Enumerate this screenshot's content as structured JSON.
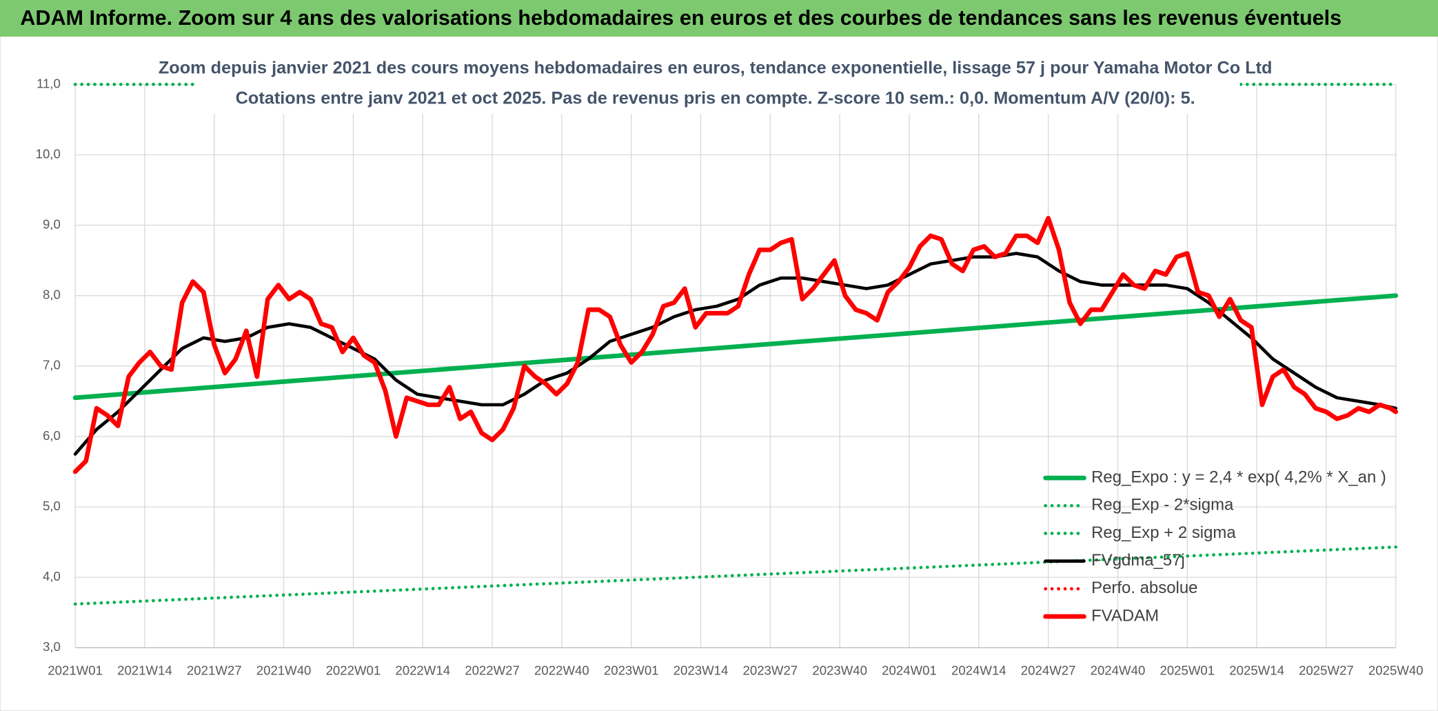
{
  "header": {
    "title": "ADAM Informe. Zoom sur 4 ans des valorisations hebdomadaires en euros et des courbes de tendances sans les revenus éventuels"
  },
  "chart_data": {
    "type": "line",
    "title": "Zoom depuis janvier 2021 des cours moyens hebdomadaires en euros, tendance exponentielle, lissage 57 j pour Yamaha Motor Co Ltd",
    "subtitle": "Cotations entre janv 2021 et oct 2025. Pas de revenus pris en compte. Z-score 10 sem.: 0,0. Momentum A/V (20/0): 5.",
    "xlim": [
      0,
      247
    ],
    "xticks": [
      {
        "value": 0,
        "label": "2021W01"
      },
      {
        "value": 13,
        "label": "2021W14"
      },
      {
        "value": 26,
        "label": "2021W27"
      },
      {
        "value": 39,
        "label": "2021W40"
      },
      {
        "value": 52,
        "label": "2022W01"
      },
      {
        "value": 65,
        "label": "2022W14"
      },
      {
        "value": 78,
        "label": "2022W27"
      },
      {
        "value": 91,
        "label": "2022W40"
      },
      {
        "value": 104,
        "label": "2023W01"
      },
      {
        "value": 117,
        "label": "2023W14"
      },
      {
        "value": 130,
        "label": "2023W27"
      },
      {
        "value": 143,
        "label": "2023W40"
      },
      {
        "value": 156,
        "label": "2024W01"
      },
      {
        "value": 169,
        "label": "2024W14"
      },
      {
        "value": 182,
        "label": "2024W27"
      },
      {
        "value": 195,
        "label": "2024W40"
      },
      {
        "value": 208,
        "label": "2025W01"
      },
      {
        "value": 221,
        "label": "2025W14"
      },
      {
        "value": 234,
        "label": "2025W27"
      },
      {
        "value": 247,
        "label": "2025W40"
      }
    ],
    "ylim": [
      3,
      11
    ],
    "yticks": [
      {
        "value": 3,
        "label": "3,0"
      },
      {
        "value": 4,
        "label": "4,0"
      },
      {
        "value": 5,
        "label": "5,0"
      },
      {
        "value": 6,
        "label": "6,0"
      },
      {
        "value": 7,
        "label": "7,0"
      },
      {
        "value": 8,
        "label": "8,0"
      },
      {
        "value": 9,
        "label": "9,0"
      },
      {
        "value": 10,
        "label": "10,0"
      },
      {
        "value": 11,
        "label": "11,0"
      }
    ],
    "grid": true,
    "legend": "lower right",
    "series": [
      {
        "name": "Reg_Expo : y = 2,4 * exp( 4,2% *  X_an )",
        "color": "#00b050",
        "style": "solid",
        "width": 5,
        "x": [
          0,
          247
        ],
        "values": [
          6.55,
          8.0
        ]
      },
      {
        "name": "Reg_Exp - 2*sigma",
        "color": "#00b050",
        "style": "dotted",
        "width": 3.5,
        "x": [
          0,
          247
        ],
        "values": [
          3.62,
          4.43
        ]
      },
      {
        "name": "Reg_Exp + 2 sigma",
        "color": "#00b050",
        "style": "dotted",
        "width": 3.5,
        "x": [
          0,
          247
        ],
        "values": [
          11.0,
          11.0
        ]
      },
      {
        "name": "FVgdma_57j",
        "color": "#000000",
        "style": "solid",
        "width": 3.5,
        "x": [
          0,
          4,
          8,
          12,
          16,
          20,
          24,
          28,
          32,
          36,
          40,
          44,
          48,
          52,
          56,
          60,
          64,
          68,
          72,
          76,
          80,
          84,
          88,
          92,
          96,
          100,
          104,
          108,
          112,
          116,
          120,
          124,
          128,
          132,
          136,
          140,
          144,
          148,
          152,
          156,
          160,
          164,
          168,
          172,
          176,
          180,
          184,
          188,
          192,
          196,
          200,
          204,
          208,
          212,
          216,
          220,
          224,
          228,
          232,
          236,
          240,
          244,
          247
        ],
        "values": [
          5.75,
          6.1,
          6.35,
          6.65,
          6.95,
          7.25,
          7.4,
          7.35,
          7.4,
          7.55,
          7.6,
          7.55,
          7.4,
          7.25,
          7.1,
          6.8,
          6.6,
          6.55,
          6.5,
          6.45,
          6.45,
          6.6,
          6.8,
          6.9,
          7.1,
          7.35,
          7.45,
          7.55,
          7.7,
          7.8,
          7.85,
          7.95,
          8.15,
          8.25,
          8.25,
          8.2,
          8.15,
          8.1,
          8.15,
          8.3,
          8.45,
          8.5,
          8.55,
          8.55,
          8.6,
          8.55,
          8.35,
          8.2,
          8.15,
          8.15,
          8.15,
          8.15,
          8.1,
          7.9,
          7.65,
          7.4,
          7.1,
          6.9,
          6.7,
          6.55,
          6.5,
          6.45,
          6.4
        ]
      },
      {
        "name": "Perfo. absolue",
        "color": "#ff0000",
        "style": "dotted",
        "width": 3.5
      },
      {
        "name": "FVADAM",
        "color": "#ff0000",
        "style": "solid",
        "width": 5,
        "x": [
          0,
          2,
          4,
          6,
          8,
          10,
          12,
          14,
          16,
          18,
          20,
          22,
          24,
          26,
          28,
          30,
          32,
          34,
          36,
          38,
          40,
          42,
          44,
          46,
          48,
          50,
          52,
          54,
          56,
          58,
          60,
          62,
          64,
          66,
          68,
          70,
          72,
          74,
          76,
          78,
          80,
          82,
          84,
          86,
          88,
          90,
          92,
          94,
          96,
          98,
          100,
          102,
          104,
          106,
          108,
          110,
          112,
          114,
          116,
          118,
          120,
          122,
          124,
          126,
          128,
          130,
          132,
          134,
          136,
          138,
          140,
          142,
          144,
          146,
          148,
          150,
          152,
          154,
          156,
          158,
          160,
          162,
          164,
          166,
          168,
          170,
          172,
          174,
          176,
          178,
          180,
          182,
          184,
          186,
          188,
          190,
          192,
          194,
          196,
          198,
          200,
          202,
          204,
          206,
          208,
          210,
          212,
          214,
          216,
          218,
          220,
          222,
          224,
          226,
          228,
          230,
          232,
          234,
          236,
          238,
          240,
          242,
          244,
          246,
          247
        ],
        "values": [
          5.5,
          5.65,
          6.4,
          6.3,
          6.15,
          6.85,
          7.05,
          7.2,
          7.0,
          6.95,
          7.9,
          8.2,
          8.05,
          7.3,
          6.9,
          7.1,
          7.5,
          6.85,
          7.95,
          8.15,
          7.95,
          8.05,
          7.95,
          7.6,
          7.55,
          7.2,
          7.4,
          7.15,
          7.05,
          6.65,
          6.0,
          6.55,
          6.5,
          6.45,
          6.45,
          6.7,
          6.25,
          6.35,
          6.05,
          5.95,
          6.1,
          6.4,
          7.0,
          6.85,
          6.75,
          6.6,
          6.75,
          7.05,
          7.8,
          7.8,
          7.7,
          7.3,
          7.05,
          7.2,
          7.45,
          7.85,
          7.9,
          8.1,
          7.55,
          7.75,
          7.75,
          7.75,
          7.85,
          8.3,
          8.65,
          8.65,
          8.75,
          8.8,
          7.95,
          8.1,
          8.3,
          8.5,
          8.0,
          7.8,
          7.75,
          7.65,
          8.05,
          8.2,
          8.4,
          8.7,
          8.85,
          8.8,
          8.45,
          8.35,
          8.65,
          8.7,
          8.55,
          8.6,
          8.85,
          8.85,
          8.75,
          9.1,
          8.65,
          7.9,
          7.6,
          7.8,
          7.8,
          8.05,
          8.3,
          8.15,
          8.1,
          8.35,
          8.3,
          8.55,
          8.6,
          8.05,
          8.0,
          7.7,
          7.95,
          7.65,
          7.55,
          6.45,
          6.85,
          6.95,
          6.7,
          6.6,
          6.4,
          6.35,
          6.25,
          6.3,
          6.4,
          6.35,
          6.45,
          6.4,
          6.35
        ]
      }
    ]
  }
}
